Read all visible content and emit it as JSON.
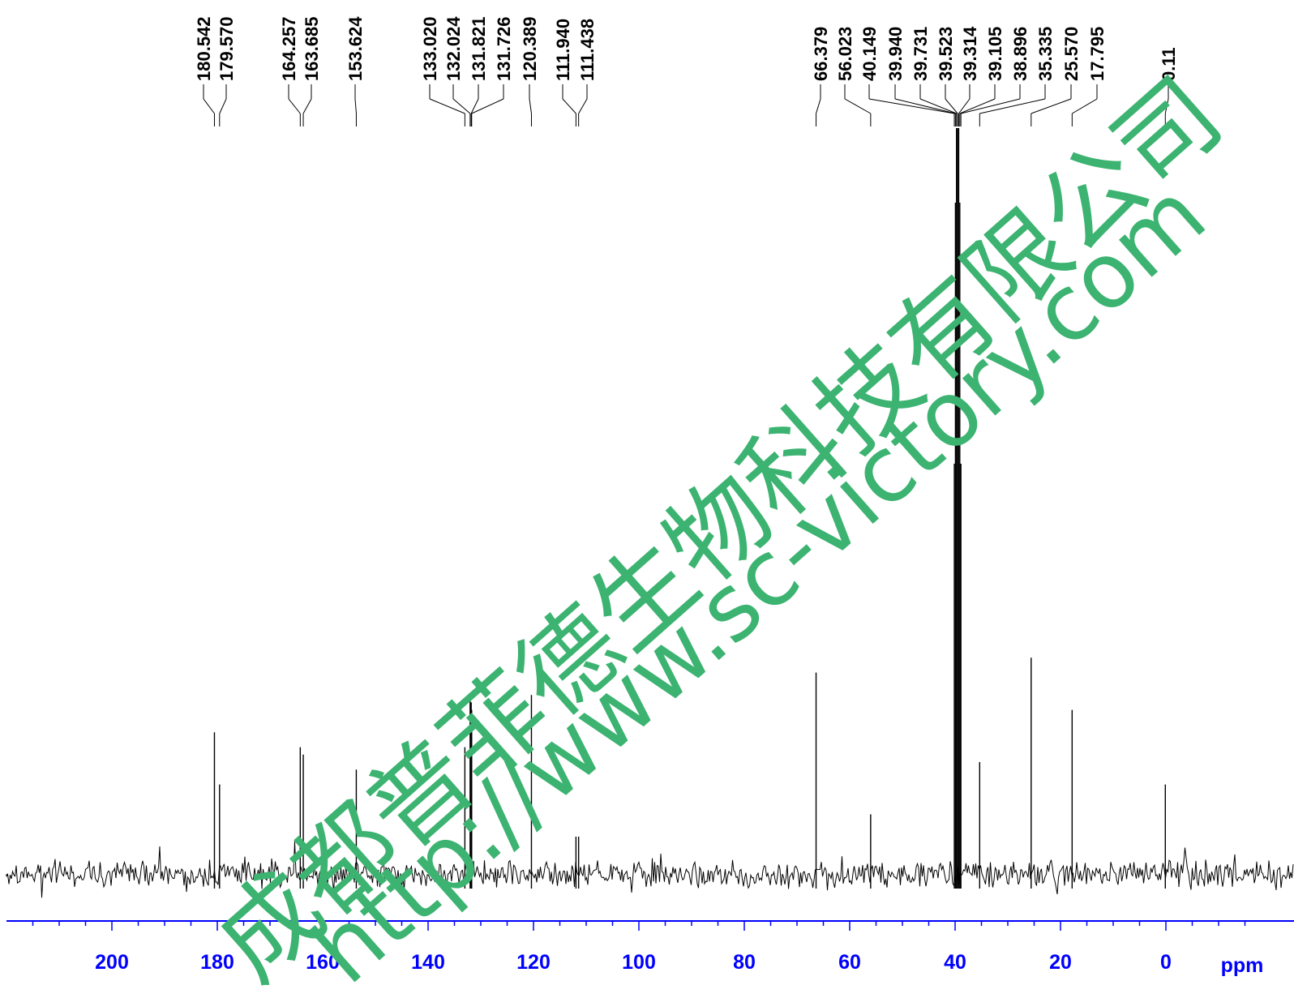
{
  "chart_data": {
    "type": "line",
    "x_axis": {
      "reversed": true,
      "range": [
        -20,
        220
      ],
      "ticks": [
        200,
        180,
        160,
        140,
        120,
        100,
        80,
        60,
        40,
        20,
        0
      ],
      "tick_labels": [
        "200",
        "180",
        "160",
        "140",
        "120",
        "100",
        "80",
        "60",
        "40",
        "20",
        "0"
      ],
      "unit_label": "ppm"
    },
    "peak_labels": [
      "180.542",
      "179.570",
      "164.257",
      "163.685",
      "153.624",
      "133.020",
      "132.024",
      "131.821",
      "131.726",
      "120.389",
      "111.940",
      "111.438",
      "66.379",
      "56.023",
      "40.149",
      "39.940",
      "39.731",
      "39.523",
      "39.314",
      "39.105",
      "38.896",
      "35.335",
      "25.570",
      "17.795",
      "0.11"
    ],
    "peaks": [
      {
        "ppm": 180.542,
        "intensity": 0.19
      },
      {
        "ppm": 179.57,
        "intensity": 0.12
      },
      {
        "ppm": 164.257,
        "intensity": 0.17
      },
      {
        "ppm": 163.685,
        "intensity": 0.16
      },
      {
        "ppm": 153.624,
        "intensity": 0.14
      },
      {
        "ppm": 133.02,
        "intensity": 0.17
      },
      {
        "ppm": 132.024,
        "intensity": 0.24
      },
      {
        "ppm": 131.821,
        "intensity": 0.23
      },
      {
        "ppm": 131.726,
        "intensity": 0.22
      },
      {
        "ppm": 120.389,
        "intensity": 0.24
      },
      {
        "ppm": 111.94,
        "intensity": 0.05
      },
      {
        "ppm": 111.438,
        "intensity": 0.05
      },
      {
        "ppm": 66.379,
        "intensity": 0.27
      },
      {
        "ppm": 56.023,
        "intensity": 0.08
      },
      {
        "ppm": 40.149,
        "intensity": 0.55
      },
      {
        "ppm": 39.94,
        "intensity": 0.9
      },
      {
        "ppm": 39.731,
        "intensity": 1.0
      },
      {
        "ppm": 39.523,
        "intensity": 1.0
      },
      {
        "ppm": 39.314,
        "intensity": 1.0
      },
      {
        "ppm": 39.105,
        "intensity": 0.9
      },
      {
        "ppm": 38.896,
        "intensity": 0.55
      },
      {
        "ppm": 35.335,
        "intensity": 0.15
      },
      {
        "ppm": 25.57,
        "intensity": 0.29
      },
      {
        "ppm": 17.795,
        "intensity": 0.22
      },
      {
        "ppm": 0.11,
        "intensity": 0.12
      }
    ],
    "colors": {
      "spectrum": "#000000",
      "axis": "#0000ff",
      "watermark": "#3cb371"
    }
  },
  "watermark": {
    "lines": [
      "成都普菲德生物科技有限公司",
      "http://www.sc-victory.com"
    ]
  }
}
